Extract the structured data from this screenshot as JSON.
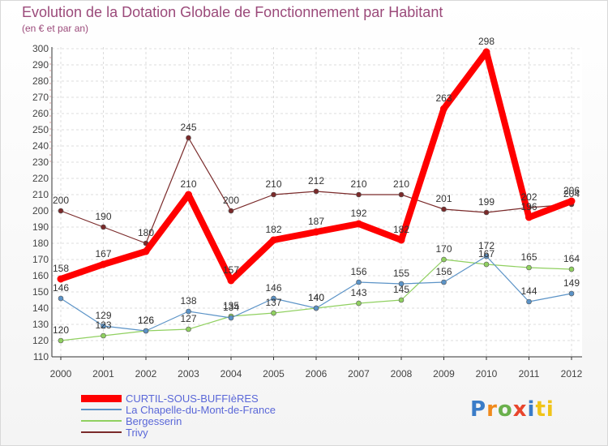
{
  "chart_data": {
    "type": "line",
    "title": "Evolution de la Dotation Globale de Fonctionnement par Habitant",
    "subtitle": "(en € et par an)",
    "x": [
      "2000",
      "2001",
      "2002",
      "2003",
      "2004",
      "2005",
      "2006",
      "2007",
      "2008",
      "2009",
      "2010",
      "2011",
      "2012"
    ],
    "ylim": [
      110,
      300
    ],
    "yticks": [
      110,
      120,
      130,
      140,
      150,
      160,
      170,
      180,
      190,
      200,
      210,
      220,
      230,
      240,
      250,
      260,
      270,
      280,
      290,
      300
    ],
    "grid": true,
    "series": [
      {
        "name": "CURTIL-SOUS-BUFFIèRES",
        "color": "#ff0000",
        "values": [
          158,
          167,
          175,
          210,
          157,
          182,
          187,
          192,
          182,
          263,
          298,
          196,
          206
        ],
        "labels": [
          "158",
          "167",
          "",
          "210",
          "157",
          "182",
          "187",
          "192",
          "182",
          "263",
          "298",
          "196",
          "206"
        ]
      },
      {
        "name": "La Chapelle-du-Mont-de-France",
        "color": "#5b93c7",
        "values": [
          146,
          129,
          126,
          138,
          134,
          146,
          140,
          156,
          155,
          156,
          172,
          144,
          149
        ],
        "labels": [
          "146",
          "129",
          "126",
          "138",
          "134",
          "146",
          "140",
          "156",
          "155",
          "156",
          "172",
          "144",
          "149"
        ]
      },
      {
        "name": "Bergesserin",
        "color": "#90d060",
        "values": [
          120,
          123,
          126,
          127,
          135,
          137,
          140,
          143,
          145,
          170,
          167,
          165,
          164
        ],
        "labels": [
          "120",
          "123",
          "126",
          "127",
          "135",
          "137",
          "140",
          "143",
          "145",
          "170",
          "167",
          "165",
          "164"
        ]
      },
      {
        "name": "Trivy",
        "color": "#7a2a2a",
        "values": [
          200,
          190,
          180,
          245,
          200,
          210,
          212,
          210,
          210,
          201,
          199,
          202,
          204
        ],
        "labels": [
          "200",
          "190",
          "180",
          "245",
          "200",
          "210",
          "212",
          "210",
          "210",
          "201",
          "199",
          "202",
          "204"
        ]
      }
    ]
  },
  "logo": {
    "letters": [
      "P",
      "r",
      "o",
      "x",
      "i",
      "ti"
    ]
  }
}
